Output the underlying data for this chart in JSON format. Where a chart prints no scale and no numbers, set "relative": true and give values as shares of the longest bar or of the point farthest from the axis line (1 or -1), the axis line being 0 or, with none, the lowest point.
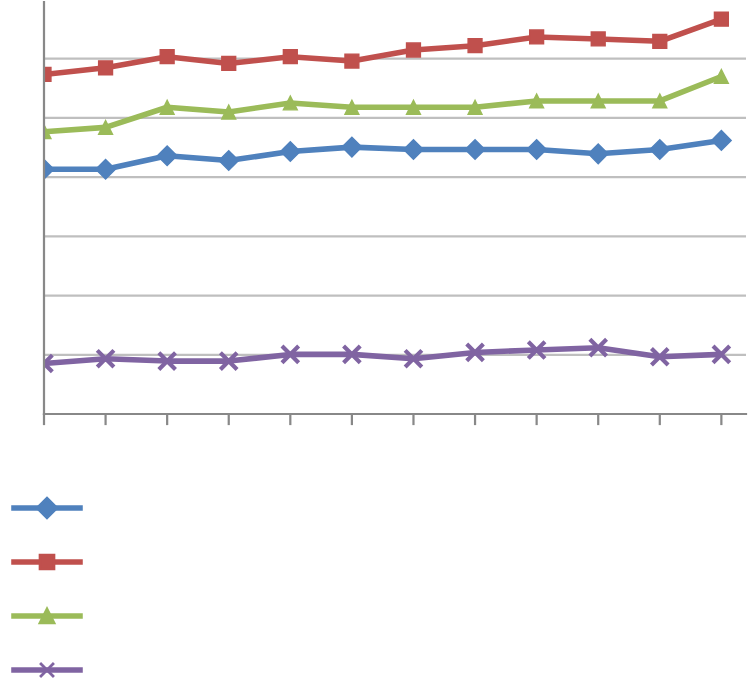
{
  "chart_data": {
    "type": "line",
    "relative": true,
    "categories": [
      null,
      null,
      null,
      null,
      null,
      null,
      null,
      null,
      null,
      null,
      null,
      null
    ],
    "series": [
      {
        "color": "#4f81bd",
        "marker": "diamond",
        "values": [
          0.62,
          0.62,
          0.654,
          0.642,
          0.665,
          0.676,
          0.67,
          0.67,
          0.67,
          0.659,
          0.67,
          0.693
        ]
      },
      {
        "color": "#c0504d",
        "marker": "square",
        "values": [
          0.86,
          0.877,
          0.905,
          0.888,
          0.905,
          0.894,
          0.922,
          0.933,
          0.955,
          0.95,
          0.944,
          1
        ]
      },
      {
        "color": "#9bbb59",
        "marker": "triangle",
        "values": [
          0.715,
          0.726,
          0.777,
          0.765,
          0.788,
          0.777,
          0.777,
          0.777,
          0.793,
          0.793,
          0.793,
          0.855
        ]
      },
      {
        "color": "#8064a2",
        "marker": "cross",
        "values": [
          0.128,
          0.14,
          0.134,
          0.134,
          0.151,
          0.151,
          0.14,
          0.156,
          0.162,
          0.168,
          0.145,
          0.151
        ]
      }
    ],
    "grid": "y",
    "tick_labels": false
  }
}
